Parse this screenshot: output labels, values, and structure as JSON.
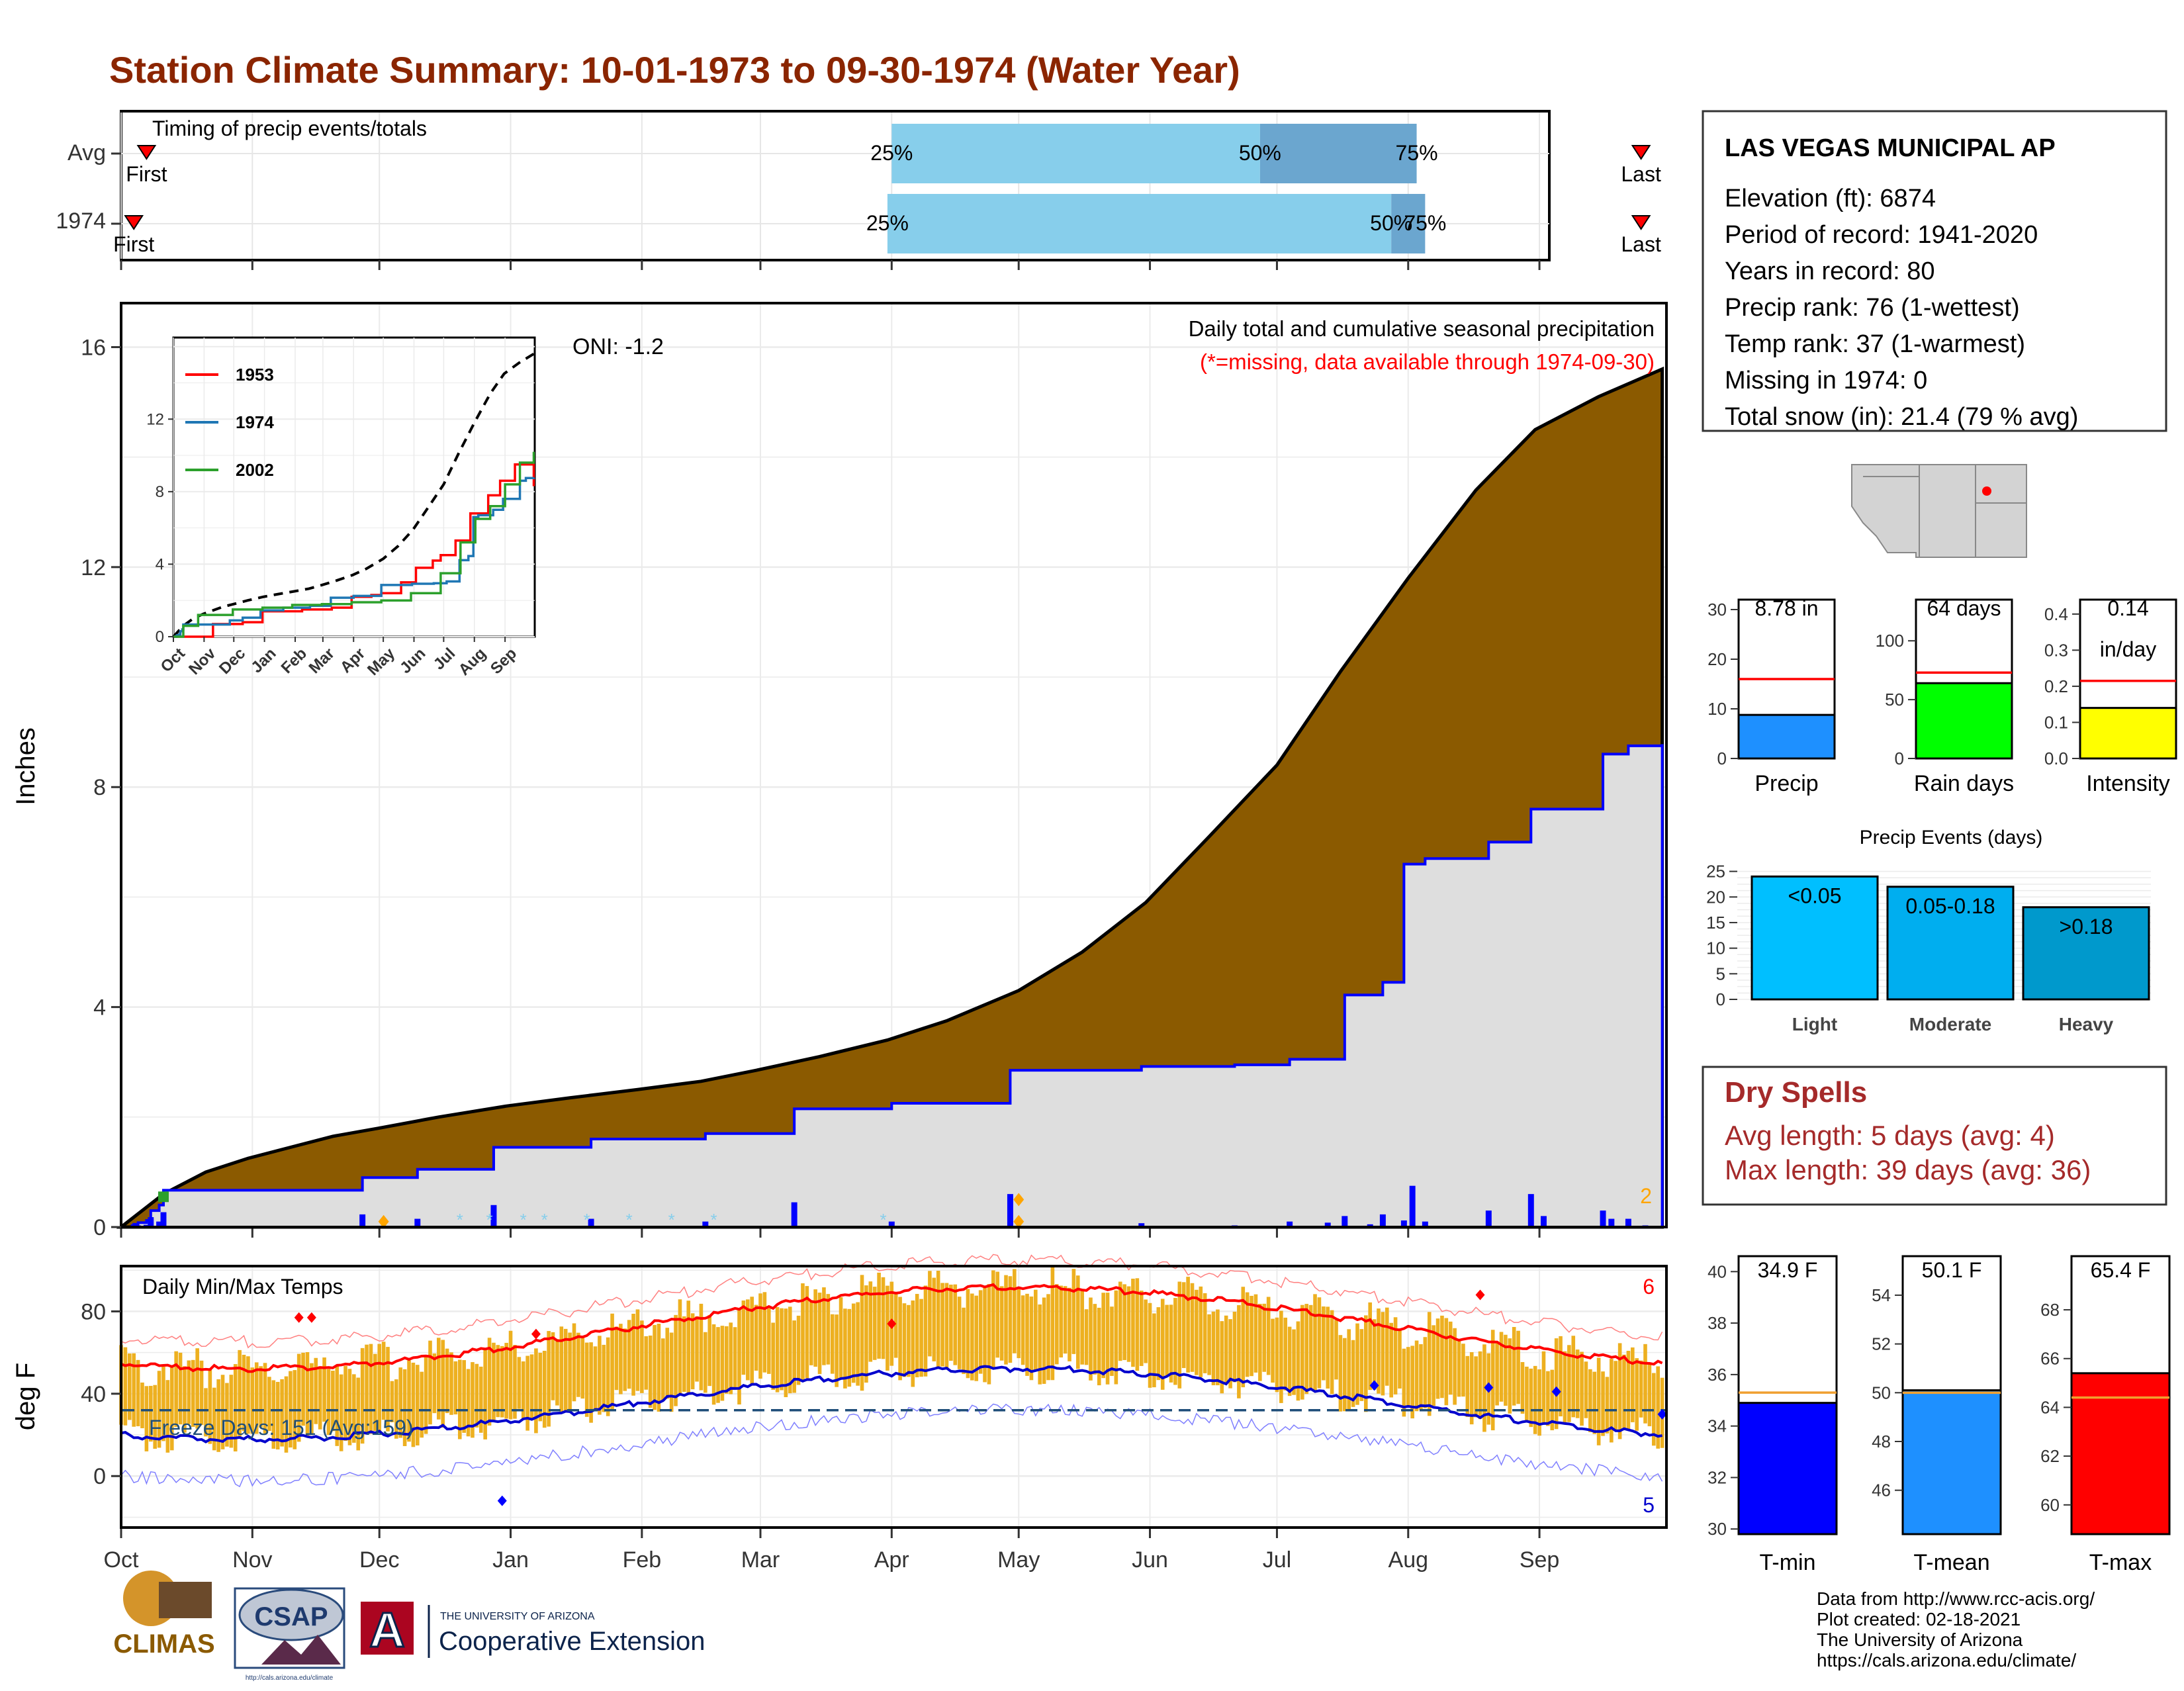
{
  "title": "Station Climate Summary: 10-01-1973 to 09-30-1974 (Water Year)",
  "colors": {
    "title": "#8B2500",
    "precip_fill": "#8B5A00",
    "light_gray": "#DEDEDE",
    "year_line": "#0000FF",
    "light_blue": "#87CEEB",
    "mid_blue": "#6BA6CF",
    "temp_bar": "#EDB020",
    "tmax_line": "#FF0000",
    "tmin_line": "#0000CD",
    "freeze_line": "#1F4E79",
    "dry_text": "#A52A2A"
  },
  "timing": {
    "label": "Timing of precip events/totals",
    "rows": [
      {
        "label": "Avg",
        "first_label": "First",
        "last_label": "Last",
        "first_day": 6,
        "last_day": 359,
        "p25_day": 182,
        "p50_day": 269,
        "p75_day": 306,
        "p25_label": "25%",
        "p50_label": "50%",
        "p75_label": "75%"
      },
      {
        "label": "1974",
        "first_label": "First",
        "last_label": "Last",
        "first_day": 3,
        "last_day": 359,
        "p25_day": 181,
        "p50_day": 300,
        "p75_day": 308,
        "p25_label": "25%",
        "p50_label": "50%",
        "p75_label": "75%"
      }
    ]
  },
  "months": [
    "Oct",
    "Nov",
    "Dec",
    "Jan",
    "Feb",
    "Mar",
    "Apr",
    "May",
    "Jun",
    "Jul",
    "Aug",
    "Sep"
  ],
  "main_panel": {
    "ylabel": "Inches",
    "yticks": [
      0,
      4,
      8,
      12,
      16
    ],
    "ylim": [
      0,
      16.8
    ],
    "caption": "Daily total and cumulative seasonal precipitation",
    "missing_note": "(*=missing, data available through 1974-09-30)",
    "oni": "ONI: -1.2",
    "corner_count": "2"
  },
  "inset": {
    "yticks": [
      "0",
      "4",
      "8",
      "12"
    ],
    "months": [
      "Oct",
      "Nov",
      "Dec",
      "Jan",
      "Feb",
      "Mar",
      "Apr",
      "May",
      "Jun",
      "Jul",
      "Aug",
      "Sep"
    ],
    "legend": [
      {
        "name": "1953",
        "color": "#FF0000"
      },
      {
        "name": "1974",
        "color": "#1F77B4"
      },
      {
        "name": "2002",
        "color": "#2CA02C"
      }
    ]
  },
  "temp_panel": {
    "ylabel": "deg F",
    "title": "Daily Min/Max Temps",
    "yticks": [
      0,
      40,
      80
    ],
    "ylim": [
      -25,
      102
    ],
    "freeze_label": "Freeze Days: 151 (Avg:159)",
    "freeze_temp": 32,
    "record_high_count": "6",
    "record_low_count": "5"
  },
  "station": {
    "name": "LAS VEGAS MUNICIPAL AP",
    "lines": [
      "Elevation (ft): 6874",
      "Period of record: 1941-2020",
      "Years in record: 80",
      "Precip rank: 76 (1-wettest)",
      "Temp rank: 37 (1-warmest)",
      "Missing in 1974: 0",
      "Total snow (in): 21.4 (79 % avg)"
    ]
  },
  "summary_bars": [
    {
      "label": "Precip",
      "value_label": "8.78 in",
      "value": 8.78,
      "avg": 16.0,
      "yticks": [
        "0",
        "10",
        "20",
        "30"
      ],
      "ymax": 32,
      "color": "#1E90FF"
    },
    {
      "label": "Rain days",
      "value_label": "64 days",
      "value": 64,
      "avg": 73,
      "yticks": [
        "0",
        "50",
        "100"
      ],
      "ymax": 135,
      "color": "#00FF00"
    },
    {
      "label": "Intensity",
      "value_label": "0.14",
      "value_label2": "in/day",
      "value": 0.14,
      "avg": 0.215,
      "yticks": [
        "0.0",
        "0.1",
        "0.2",
        "0.3",
        "0.4"
      ],
      "ymax": 0.44,
      "color": "#FFFF00"
    }
  ],
  "events": {
    "title": "Precip Events (days)",
    "yticks": [
      "0",
      "5",
      "10",
      "15",
      "20",
      "25"
    ],
    "categories": [
      "Light",
      "Moderate",
      "Heavy"
    ],
    "bin_labels": [
      "<0.05",
      "0.05-0.18",
      ">0.18"
    ],
    "values": [
      24,
      22,
      18
    ],
    "colors": [
      "#00BFFF",
      "#00AEEF",
      "#0099CC"
    ]
  },
  "dry_spells": {
    "title": "Dry Spells",
    "avg_line": "Avg length: 5 days (avg: 4)",
    "max_line": "Max length: 39 days (avg: 36)"
  },
  "temp_bars": [
    {
      "label": "T-min",
      "value_label": "34.9 F",
      "value": 34.9,
      "avg": 35.3,
      "yticks": [
        "30",
        "32",
        "34",
        "36",
        "38",
        "40"
      ],
      "ymin": 29.8,
      "ymax": 40.6,
      "color": "#0000FF"
    },
    {
      "label": "T-mean",
      "value_label": "50.1 F",
      "value": 50.1,
      "avg": 50.0,
      "yticks": [
        "46",
        "48",
        "50",
        "52",
        "54"
      ],
      "ymin": 44.2,
      "ymax": 55.6,
      "color": "#1E90FF"
    },
    {
      "label": "T-max",
      "value_label": "65.4 F",
      "value": 65.4,
      "avg": 64.4,
      "yticks": [
        "60",
        "62",
        "64",
        "66",
        "68"
      ],
      "ymin": 58.8,
      "ymax": 70.2,
      "color": "#FF0000"
    }
  ],
  "footer": {
    "source_lines": [
      "Data from http://www.rcc-acis.org/",
      "Plot created: 02-18-2021",
      "The University of Arizona",
      "https://cals.arizona.edu/climate/"
    ],
    "climas": "CLIMAS",
    "csap": "CSAP",
    "csap_url": "http://cals.arizona.edu/climate",
    "ua_small": "THE UNIVERSITY OF ARIZONA",
    "ua_big": "Cooperative Extension",
    "ua_letter": "A"
  },
  "chart_data": {
    "type": "area",
    "title": "Daily total and cumulative seasonal precipitation",
    "ylabel": "Inches",
    "ylim": [
      0,
      16.8
    ],
    "x_unit": "day of water year (0 = Oct 1, 1973)",
    "series": [
      {
        "name": "Avg cumulative",
        "x": [
          0,
          10,
          20,
          30,
          40,
          50,
          61,
          75,
          91,
          106,
          122,
          137,
          150,
          165,
          181,
          195,
          212,
          227,
          242,
          257,
          273,
          288,
          304,
          320,
          334,
          349,
          364
        ],
        "values": [
          0,
          0.6,
          1.0,
          1.25,
          1.45,
          1.65,
          1.8,
          2.0,
          2.2,
          2.35,
          2.5,
          2.65,
          2.85,
          3.1,
          3.4,
          3.75,
          4.3,
          5.0,
          5.9,
          7.1,
          8.4,
          10.1,
          11.8,
          13.4,
          14.5,
          15.1,
          15.6
        ]
      },
      {
        "name": "1974 cumulative",
        "x": [
          0,
          3,
          4,
          6,
          7,
          9,
          10,
          56,
          57,
          69,
          70,
          87,
          88,
          110,
          111,
          137,
          138,
          158,
          159,
          181,
          182,
          209,
          210,
          240,
          241,
          262,
          263,
          275,
          276,
          288,
          289,
          297,
          298,
          302,
          303,
          307,
          308,
          322,
          323,
          332,
          333,
          349,
          350,
          356,
          364
        ],
        "values": [
          0,
          0.05,
          0.08,
          0.12,
          0.3,
          0.4,
          0.67,
          0.67,
          0.9,
          0.9,
          1.05,
          1.05,
          1.45,
          1.45,
          1.6,
          1.6,
          1.7,
          1.7,
          2.15,
          2.15,
          2.25,
          2.25,
          2.85,
          2.85,
          2.92,
          2.92,
          2.95,
          2.95,
          3.05,
          3.05,
          4.22,
          4.22,
          4.45,
          4.45,
          6.6,
          6.6,
          6.7,
          6.7,
          7.0,
          7.0,
          7.6,
          7.6,
          8.6,
          8.75,
          8.78
        ]
      },
      {
        "name": "1974 daily precip",
        "x": [
          3,
          4,
          6,
          7,
          9,
          10,
          57,
          70,
          88,
          111,
          138,
          159,
          182,
          210,
          241,
          263,
          276,
          285,
          289,
          295,
          298,
          303,
          305,
          308,
          323,
          333,
          336,
          350,
          352,
          356,
          360
        ],
        "values": [
          0.05,
          0.03,
          0.04,
          0.18,
          0.1,
          0.27,
          0.23,
          0.15,
          0.4,
          0.15,
          0.1,
          0.45,
          0.1,
          0.6,
          0.07,
          0.03,
          0.1,
          0.08,
          0.2,
          0.05,
          0.23,
          0.12,
          0.75,
          0.1,
          0.3,
          0.6,
          0.2,
          0.3,
          0.15,
          0.15,
          0.03
        ]
      }
    ]
  }
}
